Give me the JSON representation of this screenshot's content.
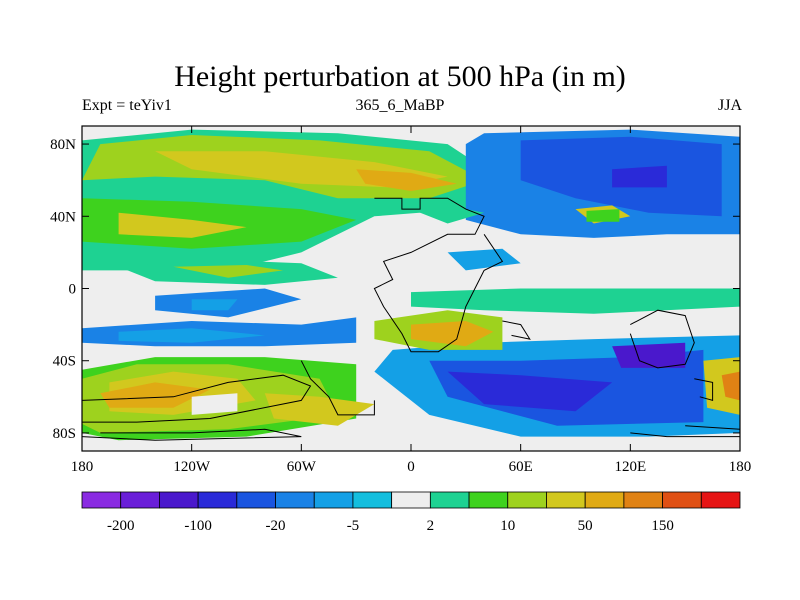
{
  "title": "Height perturbation at 500 hPa (in m)",
  "subtitle_left": "Expt = teYiv1",
  "subtitle_center": "365_6_MaBP",
  "subtitle_right": "JJA",
  "chart_data": {
    "type": "heatmap",
    "title": "Height perturbation at 500 hPa (in m)",
    "subtitle_left": "Expt = teYiv1",
    "subtitle_center": "365_6_MaBP",
    "subtitle_right": "JJA",
    "xlim": [
      -180,
      180
    ],
    "ylim": [
      -90,
      90
    ],
    "x_ticks": [
      {
        "value": -180,
        "label": "180"
      },
      {
        "value": -120,
        "label": "120W"
      },
      {
        "value": -60,
        "label": "60W"
      },
      {
        "value": 0,
        "label": "0"
      },
      {
        "value": 60,
        "label": "60E"
      },
      {
        "value": 120,
        "label": "120E"
      },
      {
        "value": 180,
        "label": "180"
      }
    ],
    "y_ticks": [
      {
        "value": 80,
        "label": "80N"
      },
      {
        "value": 40,
        "label": "40N"
      },
      {
        "value": 0,
        "label": "0"
      },
      {
        "value": -40,
        "label": "40S"
      },
      {
        "value": -80,
        "label": "80S"
      }
    ],
    "colorbar": {
      "colors": [
        "#8a2be2",
        "#6a1ed8",
        "#4a18cc",
        "#2a2ad8",
        "#1a55e0",
        "#1a82e6",
        "#14a0e6",
        "#14bede",
        "#eeeeee",
        "#1ed292",
        "#3ed21e",
        "#9ed21e",
        "#d2c81e",
        "#e0aa14",
        "#e08214",
        "#e05014",
        "#e61414"
      ],
      "labels": [
        {
          "boundary": 1,
          "label": "-200"
        },
        {
          "boundary": 3,
          "label": "-100"
        },
        {
          "boundary": 5,
          "label": "-20"
        },
        {
          "boundary": 7,
          "label": "-5"
        },
        {
          "boundary": 9,
          "label": "2"
        },
        {
          "boundary": 11,
          "label": "10"
        },
        {
          "boundary": 13,
          "label": "50"
        },
        {
          "boundary": 15,
          "label": "150"
        }
      ]
    },
    "regions": [
      {
        "level": 8,
        "points": [
          [
            -180,
            -40
          ],
          [
            -130,
            -32
          ],
          [
            -60,
            -34
          ],
          [
            -20,
            -30
          ],
          [
            -10,
            -50
          ],
          [
            -20,
            -75
          ],
          [
            -60,
            -85
          ],
          [
            -130,
            -85
          ],
          [
            -180,
            -80
          ]
        ]
      },
      {
        "level": 10,
        "points": [
          [
            -180,
            -45
          ],
          [
            -140,
            -38
          ],
          [
            -80,
            -38
          ],
          [
            -30,
            -42
          ],
          [
            -30,
            -72
          ],
          [
            -90,
            -82
          ],
          [
            -160,
            -84
          ],
          [
            -180,
            -80
          ]
        ]
      },
      {
        "level": 11,
        "points": [
          [
            -180,
            -50
          ],
          [
            -150,
            -42
          ],
          [
            -100,
            -42
          ],
          [
            -50,
            -50
          ],
          [
            -40,
            -70
          ],
          [
            -100,
            -78
          ],
          [
            -170,
            -80
          ],
          [
            -180,
            -75
          ]
        ]
      },
      {
        "level": 12,
        "points": [
          [
            -165,
            -52
          ],
          [
            -130,
            -46
          ],
          [
            -95,
            -50
          ],
          [
            -85,
            -62
          ],
          [
            -130,
            -70
          ],
          [
            -165,
            -68
          ]
        ]
      },
      {
        "level": 12,
        "points": [
          [
            -80,
            -58
          ],
          [
            -50,
            -60
          ],
          [
            -20,
            -64
          ],
          [
            -40,
            -76
          ],
          [
            -75,
            -72
          ]
        ]
      },
      {
        "level": 13,
        "points": [
          [
            -170,
            -58
          ],
          [
            -140,
            -52
          ],
          [
            -110,
            -56
          ],
          [
            -130,
            -66
          ],
          [
            -165,
            -66
          ]
        ]
      },
      {
        "level": 8,
        "points": [
          [
            -120,
            -60
          ],
          [
            -95,
            -58
          ],
          [
            -95,
            -68
          ],
          [
            -120,
            -70
          ]
        ]
      },
      {
        "level": 5,
        "points": [
          [
            -180,
            -22
          ],
          [
            -120,
            -18
          ],
          [
            -60,
            -20
          ],
          [
            -30,
            -16
          ],
          [
            -30,
            -30
          ],
          [
            -80,
            -32
          ],
          [
            -140,
            -32
          ],
          [
            -180,
            -30
          ]
        ]
      },
      {
        "level": 6,
        "points": [
          [
            -160,
            -24
          ],
          [
            -120,
            -22
          ],
          [
            -80,
            -26
          ],
          [
            -120,
            -30
          ],
          [
            -160,
            -29
          ]
        ]
      },
      {
        "level": 5,
        "points": [
          [
            -140,
            -4
          ],
          [
            -80,
            0
          ],
          [
            -60,
            -6
          ],
          [
            -100,
            -16
          ],
          [
            -140,
            -12
          ]
        ]
      },
      {
        "level": 6,
        "points": [
          [
            -120,
            -6
          ],
          [
            -95,
            -6
          ],
          [
            -100,
            -12
          ],
          [
            -120,
            -12
          ]
        ]
      },
      {
        "level": 9,
        "points": [
          [
            -180,
            82
          ],
          [
            -120,
            88
          ],
          [
            -40,
            86
          ],
          [
            20,
            80
          ],
          [
            50,
            60
          ],
          [
            30,
            44
          ],
          [
            -20,
            40
          ],
          [
            -60,
            20
          ],
          [
            -100,
            10
          ],
          [
            -180,
            10
          ]
        ]
      },
      {
        "level": 11,
        "points": [
          [
            -170,
            80
          ],
          [
            -120,
            85
          ],
          [
            -50,
            82
          ],
          [
            10,
            76
          ],
          [
            40,
            60
          ],
          [
            10,
            50
          ],
          [
            -40,
            50
          ],
          [
            -80,
            60
          ],
          [
            -140,
            62
          ],
          [
            -180,
            60
          ]
        ]
      },
      {
        "level": 12,
        "points": [
          [
            -140,
            76
          ],
          [
            -80,
            76
          ],
          [
            -20,
            70
          ],
          [
            20,
            62
          ],
          [
            -10,
            56
          ],
          [
            -60,
            58
          ],
          [
            -120,
            66
          ]
        ]
      },
      {
        "level": 13,
        "points": [
          [
            -30,
            66
          ],
          [
            0,
            64
          ],
          [
            25,
            58
          ],
          [
            0,
            54
          ],
          [
            -25,
            58
          ]
        ]
      },
      {
        "level": 10,
        "points": [
          [
            -180,
            50
          ],
          [
            -120,
            48
          ],
          [
            -60,
            44
          ],
          [
            -30,
            38
          ],
          [
            -60,
            26
          ],
          [
            -120,
            22
          ],
          [
            -180,
            26
          ]
        ]
      },
      {
        "level": 12,
        "points": [
          [
            -160,
            42
          ],
          [
            -120,
            38
          ],
          [
            -90,
            34
          ],
          [
            -120,
            28
          ],
          [
            -160,
            30
          ]
        ]
      },
      {
        "level": 9,
        "points": [
          [
            -160,
            12
          ],
          [
            -110,
            16
          ],
          [
            -60,
            14
          ],
          [
            -40,
            6
          ],
          [
            -80,
            2
          ],
          [
            -140,
            4
          ]
        ]
      },
      {
        "level": 11,
        "points": [
          [
            -130,
            12
          ],
          [
            -90,
            13
          ],
          [
            -70,
            10
          ],
          [
            -100,
            6
          ]
        ]
      },
      {
        "level": 5,
        "points": [
          [
            40,
            86
          ],
          [
            120,
            88
          ],
          [
            180,
            84
          ],
          [
            180,
            30
          ],
          [
            140,
            30
          ],
          [
            100,
            28
          ],
          [
            60,
            30
          ],
          [
            30,
            38
          ],
          [
            30,
            60
          ],
          [
            30,
            80
          ]
        ]
      },
      {
        "level": 4,
        "points": [
          [
            60,
            82
          ],
          [
            120,
            84
          ],
          [
            170,
            80
          ],
          [
            170,
            40
          ],
          [
            130,
            42
          ],
          [
            90,
            50
          ],
          [
            60,
            60
          ]
        ]
      },
      {
        "level": 3,
        "points": [
          [
            110,
            66
          ],
          [
            140,
            68
          ],
          [
            140,
            56
          ],
          [
            110,
            56
          ]
        ]
      },
      {
        "level": 12,
        "points": [
          [
            90,
            44
          ],
          [
            110,
            46
          ],
          [
            120,
            40
          ],
          [
            100,
            36
          ]
        ]
      },
      {
        "level": 10,
        "points": [
          [
            96,
            43
          ],
          [
            114,
            44
          ],
          [
            114,
            37
          ],
          [
            96,
            37
          ]
        ]
      },
      {
        "level": 9,
        "points": [
          [
            0,
            -2
          ],
          [
            60,
            0
          ],
          [
            110,
            0
          ],
          [
            180,
            0
          ],
          [
            180,
            -10
          ],
          [
            100,
            -14
          ],
          [
            40,
            -12
          ],
          [
            0,
            -10
          ]
        ]
      },
      {
        "level": 6,
        "points": [
          [
            -10,
            -34
          ],
          [
            40,
            -30
          ],
          [
            100,
            -28
          ],
          [
            180,
            -26
          ],
          [
            180,
            -80
          ],
          [
            130,
            -82
          ],
          [
            60,
            -82
          ],
          [
            10,
            -70
          ],
          [
            -20,
            -46
          ]
        ]
      },
      {
        "level": 4,
        "points": [
          [
            10,
            -40
          ],
          [
            60,
            -40
          ],
          [
            120,
            -38
          ],
          [
            160,
            -34
          ],
          [
            160,
            -74
          ],
          [
            80,
            -76
          ],
          [
            20,
            -60
          ]
        ]
      },
      {
        "level": 3,
        "points": [
          [
            20,
            -46
          ],
          [
            60,
            -48
          ],
          [
            110,
            -52
          ],
          [
            90,
            -68
          ],
          [
            40,
            -64
          ]
        ]
      },
      {
        "level": 2,
        "points": [
          [
            110,
            -32
          ],
          [
            150,
            -30
          ],
          [
            150,
            -44
          ],
          [
            115,
            -44
          ]
        ]
      },
      {
        "level": 11,
        "points": [
          [
            -20,
            -18
          ],
          [
            20,
            -12
          ],
          [
            50,
            -16
          ],
          [
            50,
            -34
          ],
          [
            10,
            -34
          ],
          [
            -20,
            -28
          ]
        ]
      },
      {
        "level": 13,
        "points": [
          [
            0,
            -20
          ],
          [
            30,
            -18
          ],
          [
            45,
            -24
          ],
          [
            30,
            -32
          ],
          [
            0,
            -28
          ]
        ]
      },
      {
        "level": 12,
        "points": [
          [
            160,
            -40
          ],
          [
            180,
            -38
          ],
          [
            180,
            -70
          ],
          [
            162,
            -66
          ]
        ]
      },
      {
        "level": 14,
        "points": [
          [
            170,
            -48
          ],
          [
            180,
            -46
          ],
          [
            180,
            -62
          ],
          [
            172,
            -60
          ]
        ]
      },
      {
        "level": 6,
        "points": [
          [
            20,
            20
          ],
          [
            50,
            22
          ],
          [
            60,
            14
          ],
          [
            30,
            10
          ]
        ]
      },
      {
        "level": 9,
        "points": [
          [
            0,
            44
          ],
          [
            20,
            46
          ],
          [
            40,
            42
          ],
          [
            20,
            36
          ]
        ]
      }
    ],
    "coastlines": [
      [
        [
          -20,
          50
        ],
        [
          -5,
          50
        ],
        [
          -5,
          44
        ],
        [
          5,
          44
        ],
        [
          5,
          50
        ],
        [
          20,
          50
        ],
        [
          30,
          44
        ],
        [
          40,
          40
        ],
        [
          35,
          30
        ],
        [
          20,
          30
        ],
        [
          0,
          20
        ],
        [
          -15,
          15
        ],
        [
          -10,
          5
        ],
        [
          -20,
          0
        ],
        [
          -15,
          -10
        ],
        [
          -5,
          -25
        ],
        [
          0,
          -35
        ],
        [
          15,
          -35
        ],
        [
          25,
          -28
        ],
        [
          30,
          -10
        ],
        [
          40,
          10
        ],
        [
          50,
          15
        ],
        [
          40,
          30
        ]
      ],
      [
        [
          -180,
          -62
        ],
        [
          -130,
          -60
        ],
        [
          -100,
          -52
        ],
        [
          -70,
          -48
        ],
        [
          -55,
          -54
        ],
        [
          -60,
          -62
        ],
        [
          -110,
          -72
        ],
        [
          -150,
          -74
        ],
        [
          -180,
          -74
        ]
      ],
      [
        [
          -170,
          -80
        ],
        [
          -120,
          -80
        ],
        [
          -80,
          -78
        ],
        [
          -60,
          -82
        ],
        [
          -140,
          -84
        ],
        [
          -180,
          -82
        ]
      ],
      [
        [
          -60,
          -40
        ],
        [
          -55,
          -50
        ],
        [
          -45,
          -60
        ],
        [
          -40,
          -70
        ],
        [
          -20,
          -70
        ],
        [
          -20,
          -62
        ]
      ],
      [
        [
          120,
          -25
        ],
        [
          125,
          -40
        ],
        [
          135,
          -44
        ],
        [
          150,
          -42
        ],
        [
          155,
          -30
        ],
        [
          150,
          -15
        ],
        [
          135,
          -12
        ],
        [
          120,
          -20
        ]
      ],
      [
        [
          120,
          -80
        ],
        [
          140,
          -82
        ],
        [
          180,
          -82
        ],
        [
          180,
          -78
        ],
        [
          150,
          -76
        ]
      ],
      [
        [
          50,
          -18
        ],
        [
          60,
          -20
        ],
        [
          65,
          -28
        ],
        [
          55,
          -26
        ]
      ],
      [
        [
          155,
          -50
        ],
        [
          165,
          -52
        ],
        [
          165,
          -62
        ],
        [
          158,
          -60
        ]
      ]
    ]
  }
}
